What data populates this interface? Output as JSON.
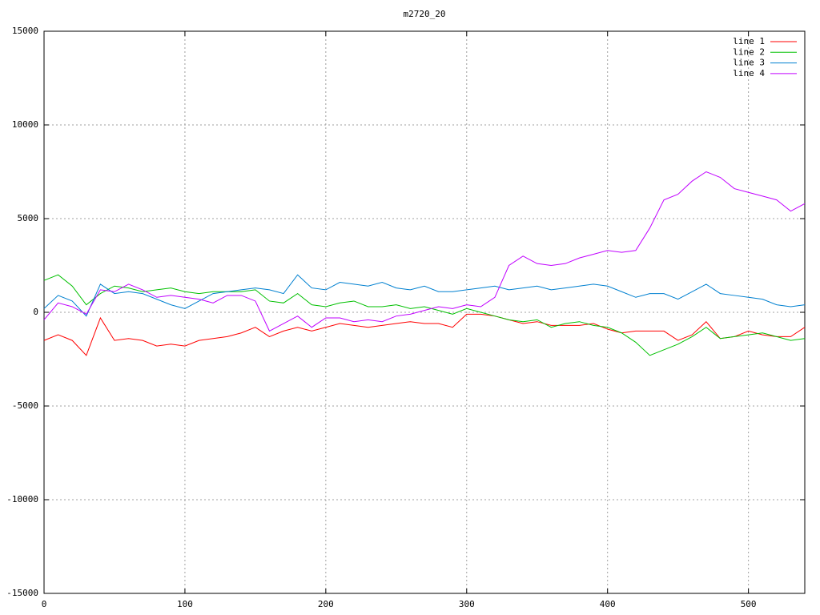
{
  "chart_data": {
    "type": "line",
    "title": "m2720_20",
    "x": [
      0,
      10,
      20,
      30,
      40,
      50,
      60,
      70,
      80,
      90,
      100,
      110,
      120,
      130,
      140,
      150,
      160,
      170,
      180,
      190,
      200,
      210,
      220,
      230,
      240,
      250,
      260,
      270,
      280,
      290,
      300,
      310,
      320,
      330,
      340,
      350,
      360,
      370,
      380,
      390,
      400,
      410,
      420,
      430,
      440,
      450,
      460,
      470,
      480,
      490,
      500,
      510,
      520,
      530,
      540
    ],
    "series": [
      {
        "name": "line 1",
        "color": "#ff0000",
        "values": [
          -1500,
          -1200,
          -1500,
          -2300,
          -300,
          -1500,
          -1400,
          -1500,
          -1800,
          -1700,
          -1800,
          -1500,
          -1400,
          -1300,
          -1100,
          -800,
          -1300,
          -1000,
          -800,
          -1000,
          -800,
          -600,
          -700,
          -800,
          -700,
          -600,
          -500,
          -600,
          -600,
          -800,
          -100,
          -100,
          -200,
          -400,
          -600,
          -500,
          -700,
          -700,
          -700,
          -600,
          -900,
          -1100,
          -1000,
          -1000,
          -1000,
          -1500,
          -1200,
          -500,
          -1400,
          -1300,
          -1000,
          -1200,
          -1300,
          -1300,
          -800
        ]
      },
      {
        "name": "line 2",
        "color": "#00c000",
        "values": [
          1700,
          2000,
          1400,
          400,
          1000,
          1400,
          1300,
          1100,
          1200,
          1300,
          1100,
          1000,
          1100,
          1100,
          1100,
          1200,
          600,
          500,
          1000,
          400,
          300,
          500,
          600,
          300,
          300,
          400,
          200,
          300,
          100,
          -100,
          200,
          0,
          -200,
          -400,
          -500,
          -400,
          -800,
          -600,
          -500,
          -700,
          -800,
          -1100,
          -1600,
          -2300,
          -2000,
          -1700,
          -1300,
          -800,
          -1400,
          -1300,
          -1200,
          -1100,
          -1300,
          -1500,
          -1400
        ]
      },
      {
        "name": "line 3",
        "color": "#0080d0",
        "values": [
          200,
          900,
          600,
          -200,
          1500,
          1000,
          1100,
          1000,
          700,
          400,
          200,
          600,
          1000,
          1100,
          1200,
          1300,
          1200,
          1000,
          2000,
          1300,
          1200,
          1600,
          1500,
          1400,
          1600,
          1300,
          1200,
          1400,
          1100,
          1100,
          1200,
          1300,
          1400,
          1200,
          1300,
          1400,
          1200,
          1300,
          1400,
          1500,
          1400,
          1100,
          800,
          1000,
          1000,
          700,
          1100,
          1500,
          1000,
          900,
          800,
          700,
          400,
          300,
          400
        ]
      },
      {
        "name": "line 4",
        "color": "#c000ff",
        "values": [
          -400,
          500,
          300,
          -100,
          1200,
          1100,
          1500,
          1200,
          800,
          900,
          800,
          700,
          500,
          900,
          900,
          600,
          -1000,
          -600,
          -200,
          -800,
          -300,
          -300,
          -500,
          -400,
          -500,
          -200,
          -100,
          100,
          300,
          200,
          400,
          300,
          800,
          2500,
          3000,
          2600,
          2500,
          2600,
          2900,
          3100,
          3300,
          3200,
          3300,
          4500,
          6000,
          6300,
          7000,
          7500,
          7200,
          6600,
          6400,
          6200,
          6000,
          5400,
          5800
        ]
      }
    ],
    "xlim": [
      0,
      540
    ],
    "xticks": [
      0,
      100,
      200,
      300,
      400,
      500
    ],
    "ylim": [
      -15000,
      15000
    ],
    "yticks": [
      -15000,
      -10000,
      -5000,
      0,
      5000,
      10000,
      15000
    ],
    "grid": true,
    "legend": "top-right"
  }
}
